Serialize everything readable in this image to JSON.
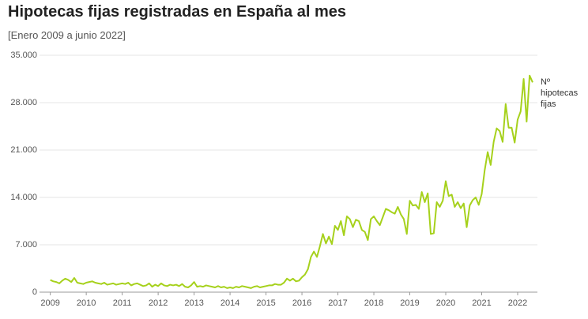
{
  "chart_data": {
    "type": "line",
    "title": "Hipotecas fijas registradas en España al mes",
    "subtitle": "[Enero 2009 a junio 2022]",
    "x": [
      2009,
      2009.083,
      2009.167,
      2009.25,
      2009.333,
      2009.417,
      2009.5,
      2009.583,
      2009.667,
      2009.75,
      2009.833,
      2009.917,
      2010,
      2010.083,
      2010.167,
      2010.25,
      2010.333,
      2010.417,
      2010.5,
      2010.583,
      2010.667,
      2010.75,
      2010.833,
      2010.917,
      2011,
      2011.083,
      2011.167,
      2011.25,
      2011.333,
      2011.417,
      2011.5,
      2011.583,
      2011.667,
      2011.75,
      2011.833,
      2011.917,
      2012,
      2012.083,
      2012.167,
      2012.25,
      2012.333,
      2012.417,
      2012.5,
      2012.583,
      2012.667,
      2012.75,
      2012.833,
      2012.917,
      2013,
      2013.083,
      2013.167,
      2013.25,
      2013.333,
      2013.417,
      2013.5,
      2013.583,
      2013.667,
      2013.75,
      2013.833,
      2013.917,
      2014,
      2014.083,
      2014.167,
      2014.25,
      2014.333,
      2014.417,
      2014.5,
      2014.583,
      2014.667,
      2014.75,
      2014.833,
      2014.917,
      2015,
      2015.083,
      2015.167,
      2015.25,
      2015.333,
      2015.417,
      2015.5,
      2015.583,
      2015.667,
      2015.75,
      2015.833,
      2015.917,
      2016,
      2016.083,
      2016.167,
      2016.25,
      2016.333,
      2016.417,
      2016.5,
      2016.583,
      2016.667,
      2016.75,
      2016.833,
      2016.917,
      2017,
      2017.083,
      2017.167,
      2017.25,
      2017.333,
      2017.417,
      2017.5,
      2017.583,
      2017.667,
      2017.75,
      2017.833,
      2017.917,
      2018,
      2018.083,
      2018.167,
      2018.25,
      2018.333,
      2018.417,
      2018.5,
      2018.583,
      2018.667,
      2018.75,
      2018.833,
      2018.917,
      2019,
      2019.083,
      2019.167,
      2019.25,
      2019.333,
      2019.417,
      2019.5,
      2019.583,
      2019.667,
      2019.75,
      2019.833,
      2019.917,
      2020,
      2020.083,
      2020.167,
      2020.25,
      2020.333,
      2020.417,
      2020.5,
      2020.583,
      2020.667,
      2020.75,
      2020.833,
      2020.917,
      2021,
      2021.083,
      2021.167,
      2021.25,
      2021.333,
      2021.417,
      2021.5,
      2021.583,
      2021.667,
      2021.75,
      2021.833,
      2021.917,
      2022,
      2022.083,
      2022.167,
      2022.25,
      2022.333,
      2022.417
    ],
    "series": [
      {
        "name": "Nº hipotecas fijas",
        "color": "#a6d11c",
        "values": [
          1800,
          1600,
          1500,
          1300,
          1700,
          2000,
          1800,
          1500,
          2100,
          1400,
          1300,
          1200,
          1400,
          1500,
          1600,
          1400,
          1300,
          1200,
          1400,
          1100,
          1200,
          1300,
          1100,
          1200,
          1300,
          1200,
          1400,
          1000,
          1200,
          1300,
          1100,
          900,
          1000,
          1300,
          800,
          1100,
          900,
          1300,
          1000,
          900,
          1100,
          1000,
          1100,
          900,
          1200,
          800,
          700,
          1000,
          1500,
          800,
          900,
          800,
          1000,
          900,
          800,
          700,
          900,
          700,
          800,
          600,
          700,
          600,
          800,
          700,
          900,
          800,
          700,
          600,
          800,
          900,
          700,
          800,
          900,
          1000,
          1000,
          1200,
          1100,
          1100,
          1400,
          2000,
          1700,
          2000,
          1600,
          1700,
          2200,
          2600,
          3400,
          5200,
          6000,
          5200,
          6800,
          8600,
          7200,
          8200,
          7100,
          9800,
          9200,
          10500,
          8400,
          11200,
          10800,
          9600,
          10700,
          10500,
          9200,
          8900,
          7700,
          10800,
          11200,
          10500,
          9900,
          11100,
          12300,
          12100,
          11800,
          11600,
          12600,
          11500,
          10800,
          8600,
          13500,
          12800,
          12900,
          12300,
          14800,
          13300,
          14600,
          8600,
          8700,
          13300,
          12600,
          13500,
          16400,
          14200,
          14400,
          12600,
          13300,
          12400,
          13100,
          9600,
          12800,
          13600,
          14000,
          12900,
          14500,
          18000,
          20700,
          18800,
          22200,
          24200,
          23800,
          22200,
          27800,
          24300,
          24300,
          22100,
          25500,
          26700,
          31500,
          25200,
          32000,
          31000
        ]
      }
    ],
    "xlim": [
      2008.7,
      2022.55
    ],
    "xticks": [
      2009,
      2010,
      2011,
      2012,
      2013,
      2014,
      2015,
      2016,
      2017,
      2018,
      2019,
      2020,
      2021,
      2022
    ],
    "ylim": [
      0,
      35000
    ],
    "yticks": [
      0,
      {
        "value": 7000,
        "label": "7.000"
      },
      {
        "value": 14000,
        "label": "14.000"
      },
      {
        "value": 21000,
        "label": "21.000"
      },
      {
        "value": 28000,
        "label": "28.000"
      },
      {
        "value": 35000,
        "label": "35.000"
      }
    ],
    "grid": true
  }
}
